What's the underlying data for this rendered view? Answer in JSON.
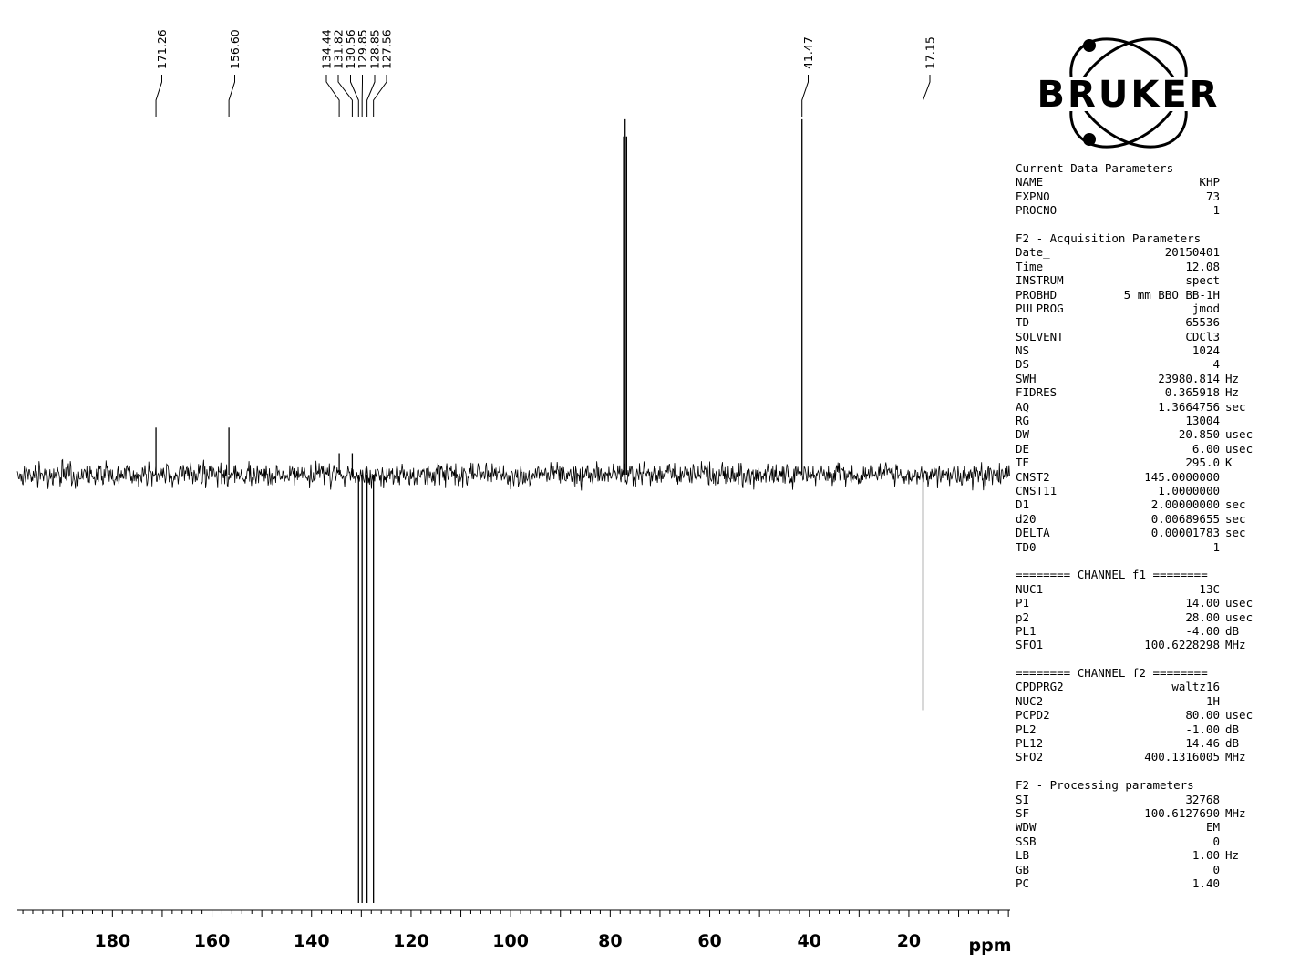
{
  "chart_data": {
    "type": "line",
    "xlabel": "ppm",
    "x_axis": {
      "direction": "reversed",
      "range": [
        199,
        0
      ],
      "major_ticks": [
        180,
        160,
        140,
        120,
        100,
        80,
        60,
        40,
        20
      ],
      "minor_step": 2
    },
    "peak_labels": [
      "171.26",
      "156.60",
      "134.44",
      "131.82",
      "130.56",
      "129.85",
      "128.85",
      "127.56",
      "41.47",
      "17.15"
    ],
    "peaks": [
      {
        "ppm": 171.26,
        "intensity": 0.11
      },
      {
        "ppm": 156.6,
        "intensity": 0.11
      },
      {
        "ppm": 134.44,
        "intensity": 0.05
      },
      {
        "ppm": 131.82,
        "intensity": 0.05
      },
      {
        "ppm": 130.56,
        "intensity": -1.0
      },
      {
        "ppm": 129.85,
        "intensity": -1.0
      },
      {
        "ppm": 128.85,
        "intensity": -1.0
      },
      {
        "ppm": 127.56,
        "intensity": -1.0
      },
      {
        "ppm": 77.3,
        "intensity": 0.79
      },
      {
        "ppm": 77.0,
        "intensity": 0.83
      },
      {
        "ppm": 76.7,
        "intensity": 0.79
      },
      {
        "ppm": 41.47,
        "intensity": 0.83
      },
      {
        "ppm": 17.15,
        "intensity": -0.55
      }
    ],
    "noise_level": 0.03,
    "ylim": [
      -1.05,
      0.95
    ]
  },
  "logo": {
    "brand": "BRUKER"
  },
  "parameters": {
    "sections": [
      {
        "title": "Current Data Parameters",
        "rows": [
          {
            "name": "NAME",
            "value": "KHP",
            "unit": ""
          },
          {
            "name": "EXPNO",
            "value": "73",
            "unit": ""
          },
          {
            "name": "PROCNO",
            "value": "1",
            "unit": ""
          }
        ]
      },
      {
        "title": "F2 - Acquisition Parameters",
        "rows": [
          {
            "name": "Date_",
            "value": "20150401",
            "unit": ""
          },
          {
            "name": "Time",
            "value": "12.08",
            "unit": ""
          },
          {
            "name": "INSTRUM",
            "value": "spect",
            "unit": ""
          },
          {
            "name": "PROBHD",
            "value": "5 mm BBO BB-1H",
            "unit": ""
          },
          {
            "name": "PULPROG",
            "value": "jmod",
            "unit": ""
          },
          {
            "name": "TD",
            "value": "65536",
            "unit": ""
          },
          {
            "name": "SOLVENT",
            "value": "CDCl3",
            "unit": ""
          },
          {
            "name": "NS",
            "value": "1024",
            "unit": ""
          },
          {
            "name": "DS",
            "value": "4",
            "unit": ""
          },
          {
            "name": "SWH",
            "value": "23980.814",
            "unit": "Hz"
          },
          {
            "name": "FIDRES",
            "value": "0.365918",
            "unit": "Hz"
          },
          {
            "name": "AQ",
            "value": "1.3664756",
            "unit": "sec"
          },
          {
            "name": "RG",
            "value": "13004",
            "unit": ""
          },
          {
            "name": "DW",
            "value": "20.850",
            "unit": "usec"
          },
          {
            "name": "DE",
            "value": "6.00",
            "unit": "usec"
          },
          {
            "name": "TE",
            "value": "295.0",
            "unit": "K"
          },
          {
            "name": "CNST2",
            "value": "145.0000000",
            "unit": ""
          },
          {
            "name": "CNST11",
            "value": "1.0000000",
            "unit": ""
          },
          {
            "name": "D1",
            "value": "2.00000000",
            "unit": "sec"
          },
          {
            "name": "d20",
            "value": "0.00689655",
            "unit": "sec"
          },
          {
            "name": "DELTA",
            "value": "0.00001783",
            "unit": "sec"
          },
          {
            "name": "TD0",
            "value": "1",
            "unit": ""
          }
        ]
      },
      {
        "title": "======== CHANNEL f1 ========",
        "rows": [
          {
            "name": "NUC1",
            "value": "13C",
            "unit": ""
          },
          {
            "name": "P1",
            "value": "14.00",
            "unit": "usec"
          },
          {
            "name": "p2",
            "value": "28.00",
            "unit": "usec"
          },
          {
            "name": "PL1",
            "value": "-4.00",
            "unit": "dB"
          },
          {
            "name": "SFO1",
            "value": "100.6228298",
            "unit": "MHz"
          }
        ]
      },
      {
        "title": "======== CHANNEL f2 ========",
        "rows": [
          {
            "name": "CPDPRG2",
            "value": "waltz16",
            "unit": ""
          },
          {
            "name": "NUC2",
            "value": "1H",
            "unit": ""
          },
          {
            "name": "PCPD2",
            "value": "80.00",
            "unit": "usec"
          },
          {
            "name": "PL2",
            "value": "-1.00",
            "unit": "dB"
          },
          {
            "name": "PL12",
            "value": "14.46",
            "unit": "dB"
          },
          {
            "name": "SFO2",
            "value": "400.1316005",
            "unit": "MHz"
          }
        ]
      },
      {
        "title": "F2 - Processing parameters",
        "rows": [
          {
            "name": "SI",
            "value": "32768",
            "unit": ""
          },
          {
            "name": "SF",
            "value": "100.6127690",
            "unit": "MHz"
          },
          {
            "name": "WDW",
            "value": "EM",
            "unit": ""
          },
          {
            "name": "SSB",
            "value": "0",
            "unit": ""
          },
          {
            "name": "LB",
            "value": "1.00",
            "unit": "Hz"
          },
          {
            "name": "GB",
            "value": "0",
            "unit": ""
          },
          {
            "name": "PC",
            "value": "1.40",
            "unit": ""
          }
        ]
      }
    ]
  }
}
